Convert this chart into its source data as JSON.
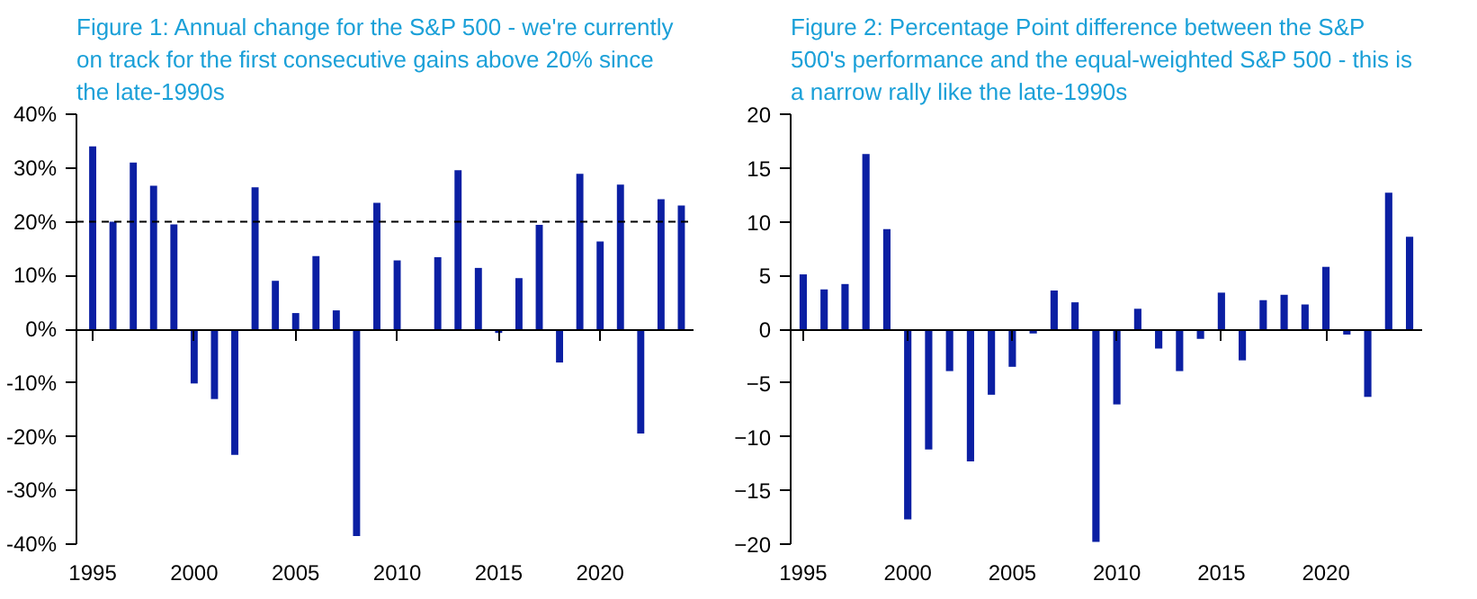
{
  "chart_data": [
    {
      "type": "bar",
      "title": "Figure 1: Annual change for the S&P 500 - we're currently on track for the first consecutive gains above 20% since the late-1990s",
      "x": [
        1995,
        1996,
        1997,
        1998,
        1999,
        2000,
        2001,
        2002,
        2003,
        2004,
        2005,
        2006,
        2007,
        2008,
        2009,
        2010,
        2011,
        2012,
        2013,
        2014,
        2015,
        2016,
        2017,
        2018,
        2019,
        2020,
        2021,
        2022,
        2023,
        2024
      ],
      "series": [
        {
          "color": "#0b1fa3",
          "values": [
            34,
            20,
            31,
            26.7,
            19.5,
            -10.1,
            -13,
            -23.4,
            26.4,
            9,
            3,
            13.6,
            3.5,
            -38.5,
            23.5,
            12.8,
            0,
            13.4,
            29.6,
            11.4,
            -0.7,
            9.5,
            19.4,
            -6.2,
            28.9,
            16.3,
            26.9,
            -19.4,
            24.2,
            23
          ]
        }
      ],
      "xlim": [
        1994.2,
        2024.6
      ],
      "xticks": [
        1995,
        2000,
        2005,
        2010,
        2015,
        2020
      ],
      "ylim": [
        -40,
        40
      ],
      "yticks": [
        {
          "value": -40,
          "label": "-40%"
        },
        {
          "value": -30,
          "label": "-30%"
        },
        {
          "value": -20,
          "label": "-20%"
        },
        {
          "value": -10,
          "label": "-10%"
        },
        {
          "value": 0,
          "label": "0%"
        },
        {
          "value": 10,
          "label": "10%"
        },
        {
          "value": 20,
          "label": "20%"
        },
        {
          "value": 30,
          "label": "30%"
        },
        {
          "value": 40,
          "label": "40%"
        }
      ],
      "ref_lines": [
        {
          "axis": "y",
          "value": 20,
          "color": "#000000",
          "line_style": "dashed"
        }
      ],
      "grid": false
    },
    {
      "type": "bar",
      "title": "Figure 2: Percentage Point difference between the S&P 500's performance and the equal-weighted S&P 500 - this is a narrow rally like the late-1990s",
      "x": [
        1995,
        1996,
        1997,
        1998,
        1999,
        2000,
        2001,
        2002,
        2003,
        2004,
        2005,
        2006,
        2007,
        2008,
        2009,
        2010,
        2011,
        2012,
        2013,
        2014,
        2015,
        2016,
        2017,
        2018,
        2019,
        2020,
        2021,
        2022,
        2023,
        2024
      ],
      "series": [
        {
          "color": "#0b1fa3",
          "values": [
            5.1,
            3.7,
            4.2,
            16.3,
            9.3,
            -17.7,
            -11.2,
            -3.9,
            -12.3,
            -6.1,
            -3.5,
            -0.4,
            3.6,
            2.5,
            -19.8,
            -7.0,
            1.9,
            -1.8,
            -3.9,
            -0.9,
            3.4,
            -2.9,
            2.7,
            3.2,
            2.3,
            5.8,
            -0.5,
            -6.3,
            12.7,
            8.6
          ]
        }
      ],
      "xlim": [
        1994.4,
        2024.6
      ],
      "xticks": [
        1995,
        2000,
        2005,
        2010,
        2015,
        2020
      ],
      "ylim": [
        -20,
        20
      ],
      "yticks": [
        -20,
        -15,
        -10,
        -5,
        0,
        5,
        10,
        15,
        20
      ]
    }
  ]
}
